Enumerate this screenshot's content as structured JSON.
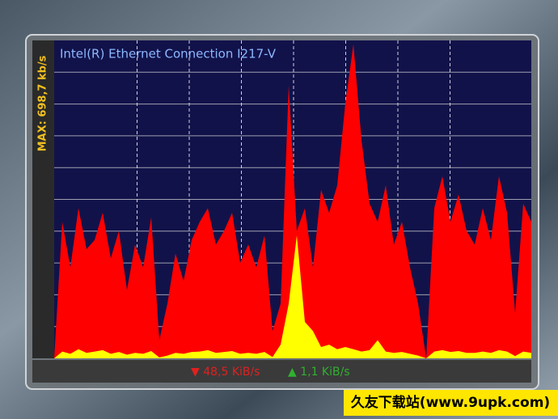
{
  "window": {
    "adapter": "Intel(R) Ethernet Connection I217-V",
    "max_label": "MAX: 698,7 kb/s",
    "download": "▼ 48,5 KiB/s",
    "upload": "▲ 1,1 KiB/s"
  },
  "chart_data": {
    "type": "area",
    "ylim": [
      0,
      698.7
    ],
    "grid": true,
    "series": [
      {
        "color": "#ff0000",
        "values": [
          0,
          300,
          200,
          330,
          240,
          260,
          320,
          220,
          280,
          150,
          250,
          200,
          310,
          40,
          120,
          230,
          170,
          260,
          300,
          330,
          250,
          280,
          320,
          210,
          250,
          200,
          270,
          60,
          120,
          600,
          280,
          330,
          200,
          370,
          320,
          380,
          560,
          690,
          480,
          340,
          300,
          380,
          250,
          300,
          200,
          120,
          0,
          330,
          400,
          300,
          360,
          280,
          250,
          330,
          260,
          400,
          320,
          100,
          340,
          300
        ]
      },
      {
        "color": "#ffff00",
        "values": [
          0,
          15,
          10,
          20,
          12,
          15,
          18,
          10,
          14,
          8,
          12,
          10,
          16,
          2,
          6,
          12,
          10,
          14,
          15,
          18,
          12,
          14,
          16,
          10,
          12,
          10,
          14,
          3,
          30,
          120,
          270,
          80,
          60,
          25,
          30,
          20,
          25,
          20,
          15,
          18,
          40,
          15,
          12,
          14,
          10,
          6,
          0,
          15,
          18,
          14,
          16,
          12,
          12,
          15,
          12,
          18,
          15,
          5,
          15,
          12
        ]
      }
    ]
  },
  "watermark": "久友下载站(www.9upk.com)"
}
